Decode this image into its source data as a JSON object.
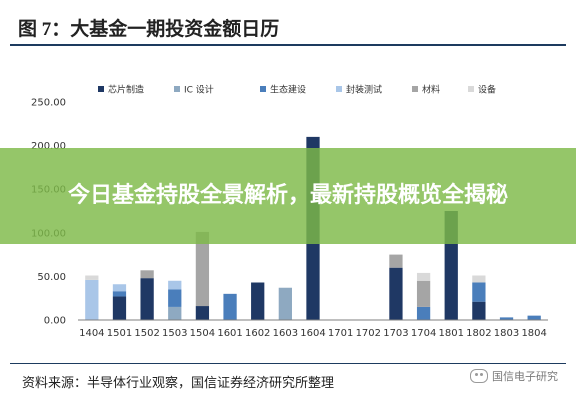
{
  "header": {
    "title": "图 7：大基金一期投资金额日历"
  },
  "banner": {
    "text": "今日基金持股全景解析，最新持股概览全揭秘"
  },
  "footer": {
    "source": "资料来源：半导体行业观察，国信证券经济研究所整理",
    "watermark": "国信电子研究"
  },
  "chart_data": {
    "type": "bar",
    "stacked": true,
    "title": "",
    "xlabel": "",
    "ylabel": "",
    "ylim": [
      0,
      250
    ],
    "yticks": [
      "0.00",
      "50.00",
      "100.00",
      "150.00",
      "200.00",
      "250.00"
    ],
    "grid": false,
    "legend_position": "top",
    "categories": [
      "1404",
      "1501",
      "1502",
      "1503",
      "1504",
      "1601",
      "1602",
      "1603",
      "1604",
      "1701",
      "1702",
      "1703",
      "1704",
      "1801",
      "1802",
      "1803",
      "1804"
    ],
    "tick_labels": [
      "1404",
      "1501",
      "1502",
      "1503",
      "1504",
      "1601",
      "1602",
      "1603",
      "1604",
      "1701",
      "1702",
      "1703",
      "1704",
      "1801",
      "1802",
      "1803",
      "1804"
    ],
    "series": [
      {
        "name": "芯片制造",
        "color": "#1f3864",
        "values": [
          0,
          27,
          48,
          0,
          16,
          0,
          43,
          0,
          210,
          0,
          0,
          60,
          0,
          125,
          21,
          0,
          0
        ]
      },
      {
        "name": "IC 设计",
        "color": "#8ea9c1",
        "values": [
          0,
          0,
          0,
          15,
          0,
          0,
          0,
          37,
          0,
          0,
          0,
          0,
          0,
          0,
          0,
          0,
          0
        ]
      },
      {
        "name": "生态建设",
        "color": "#4a7ebb",
        "values": [
          0,
          6,
          0,
          20,
          0,
          30,
          0,
          0,
          0,
          0,
          0,
          0,
          15,
          0,
          22,
          3,
          5
        ]
      },
      {
        "name": "封装测试",
        "color": "#a9c6e8",
        "values": [
          46,
          8,
          0,
          10,
          0,
          0,
          0,
          0,
          0,
          0,
          0,
          0,
          0,
          0,
          0,
          0,
          0
        ]
      },
      {
        "name": "材料",
        "color": "#a5a5a5",
        "values": [
          0,
          0,
          9,
          0,
          85,
          0,
          0,
          0,
          0,
          0,
          0,
          15,
          30,
          0,
          0,
          0,
          0
        ]
      },
      {
        "name": "设备",
        "color": "#d9d9d9",
        "values": [
          5,
          0,
          0,
          0,
          0,
          0,
          0,
          0,
          0,
          0,
          0,
          0,
          9,
          0,
          8,
          0,
          0
        ]
      }
    ]
  }
}
